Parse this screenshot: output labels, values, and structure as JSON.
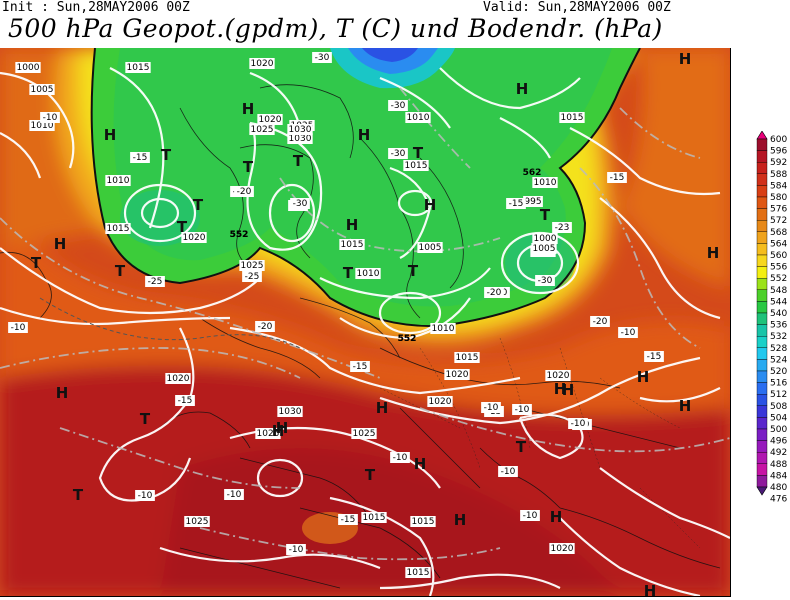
{
  "header": {
    "init": "Init : Sun,28MAY2006 00Z",
    "valid": "Valid: Sun,28MAY2006 00Z",
    "title": "500 hPa Geopot.(gpdm), T (C) und Bodendr. (hPa)"
  },
  "legend": {
    "values": [
      "600",
      "596",
      "592",
      "588",
      "584",
      "580",
      "576",
      "572",
      "568",
      "564",
      "560",
      "556",
      "552",
      "548",
      "544",
      "540",
      "536",
      "532",
      "528",
      "524",
      "520",
      "516",
      "512",
      "508",
      "504",
      "500",
      "496",
      "492",
      "488",
      "484",
      "480",
      "476"
    ],
    "colors": [
      "#e8007a",
      "#9c0f2c",
      "#b51524",
      "#c7211c",
      "#d0301a",
      "#d83f15",
      "#df5714",
      "#e26f14",
      "#e78918",
      "#efa31c",
      "#f5bd1e",
      "#f7d71e",
      "#f3ef12",
      "#9ce21a",
      "#4cd02a",
      "#28c843",
      "#1ec27a",
      "#18c4a8",
      "#1ad0c8",
      "#22c8ee",
      "#28aaf0",
      "#2a8cf0",
      "#2a6ef0",
      "#2a52e4",
      "#3a36d8",
      "#5a26cc",
      "#7a1ec4",
      "#961abc",
      "#b018b0",
      "#c614a4",
      "#8e1a9c",
      "#4a1a78"
    ]
  },
  "map": {
    "pressure_labels": [
      "1000",
      "1005",
      "1010",
      "1015",
      "1020",
      "1025",
      "1030",
      "995",
      "1005",
      "1010",
      "1015",
      "1020",
      "1025",
      "1030",
      "1010",
      "1015",
      "1020",
      "1025",
      "1015",
      "1010",
      "1005",
      "1000",
      "1005",
      "1010",
      "1015",
      "1020",
      "1020",
      "1015",
      "1010",
      "1020",
      "1025",
      "1030",
      "1025",
      "1020",
      "1015",
      "1015",
      "1020",
      "1015",
      "1025",
      "1020"
    ],
    "temp_labels": [
      "-10",
      "-10",
      "-15",
      "-20",
      "-25",
      "-30",
      "-30",
      "-25",
      "-20",
      "-15",
      "-10",
      "-15",
      "-20",
      "-25",
      "-30",
      "-23",
      "-30",
      "-20",
      "-15",
      "-10",
      "-15",
      "-20",
      "-15",
      "-10",
      "-10",
      "-15",
      "-10",
      "-10",
      "-10",
      "-10",
      "-10",
      "-15",
      "-10",
      "-10",
      "-20",
      "-30"
    ],
    "geopot_labels": [
      "552",
      "552",
      "562",
      "552",
      "552"
    ],
    "high_low_labels": [
      "H",
      "H",
      "H",
      "H",
      "H",
      "H",
      "H",
      "H",
      "H",
      "H",
      "H",
      "H",
      "H",
      "H",
      "H",
      "H",
      "H",
      "H",
      "H",
      "H",
      "H",
      "T",
      "T",
      "T",
      "T",
      "T",
      "T",
      "T",
      "T",
      "T",
      "T",
      "T",
      "T",
      "T",
      "T",
      "T"
    ]
  }
}
